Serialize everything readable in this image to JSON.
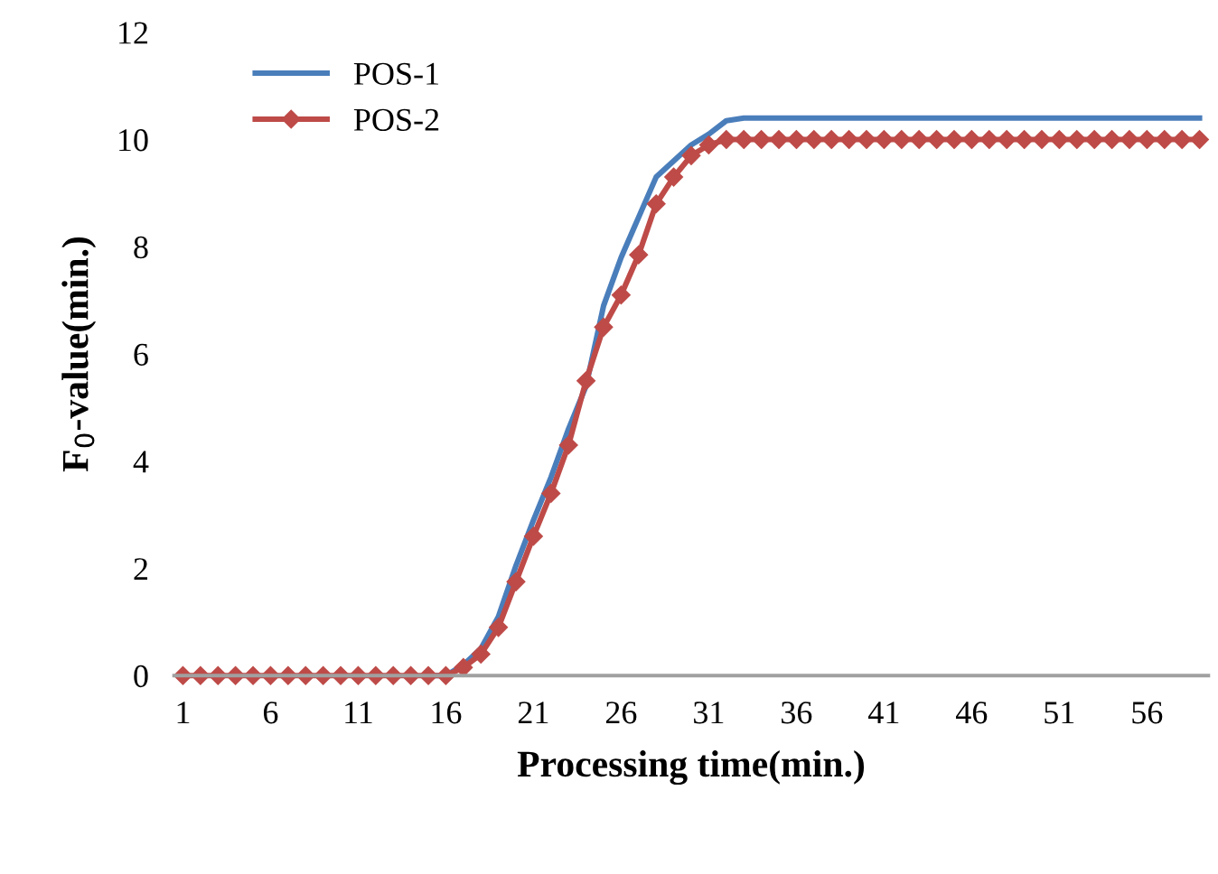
{
  "chart_data": {
    "type": "line",
    "xlabel": "Processing time(min.)",
    "ylabel": "F$_{0}$-value(min.)",
    "categories": [
      "1",
      null,
      null,
      null,
      null,
      "6",
      null,
      null,
      null,
      null,
      "11",
      null,
      null,
      null,
      null,
      "16",
      null,
      null,
      null,
      null,
      "21",
      null,
      null,
      null,
      null,
      "26",
      null,
      null,
      null,
      null,
      "31",
      null,
      null,
      null,
      null,
      "36",
      null,
      null,
      null,
      null,
      "41",
      null,
      null,
      null,
      null,
      "46",
      null,
      null,
      null,
      null,
      "51",
      null,
      null,
      null,
      null,
      "56",
      null,
      null,
      null
    ],
    "ylim": [
      0,
      12
    ],
    "yticks": [
      0,
      2,
      4,
      6,
      8,
      10,
      12
    ],
    "grid": false,
    "legend": "top left",
    "series": [
      {
        "name": "POS-1",
        "color": "#4a7ebb",
        "marker": "none",
        "values": [
          null,
          null,
          null,
          null,
          null,
          null,
          null,
          null,
          null,
          null,
          null,
          null,
          null,
          null,
          0,
          0,
          0.2,
          0.5,
          1.1,
          2.05,
          2.9,
          3.7,
          4.6,
          5.4,
          6.9,
          7.8,
          8.55,
          9.3,
          9.6,
          9.9,
          10.1,
          10.35,
          10.4,
          10.4,
          10.4,
          10.4,
          10.4,
          10.4,
          10.4,
          10.4,
          10.4,
          10.4,
          10.4,
          10.4,
          10.4,
          10.4,
          10.4,
          10.4,
          10.4,
          10.4,
          10.4,
          10.4,
          10.4,
          10.4,
          10.4,
          10.4,
          10.4,
          10.4,
          10.4
        ]
      },
      {
        "name": "POS-2",
        "color": "#be4b48",
        "marker": "diamond",
        "values": [
          0,
          0,
          0,
          0,
          0,
          0,
          0,
          0,
          0,
          0,
          0,
          0,
          0,
          0,
          0,
          0,
          0.15,
          0.4,
          0.9,
          1.75,
          2.6,
          3.4,
          4.3,
          5.5,
          6.5,
          7.1,
          7.85,
          8.8,
          9.3,
          9.7,
          9.9,
          10,
          10,
          10,
          10,
          10,
          10,
          10,
          10,
          10,
          10,
          10,
          10,
          10,
          10,
          10,
          10,
          10,
          10,
          10,
          10,
          10,
          10,
          10,
          10,
          10,
          10,
          10,
          10
        ]
      }
    ]
  }
}
